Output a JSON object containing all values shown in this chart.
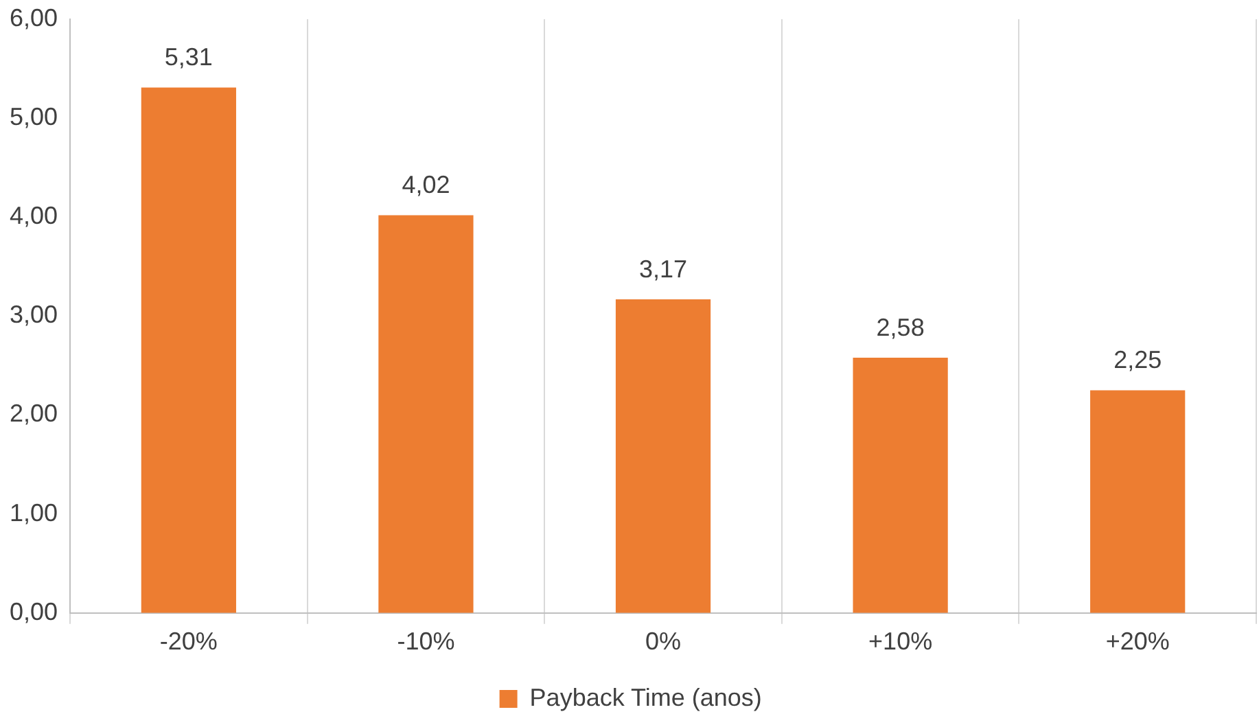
{
  "chart_data": {
    "type": "bar",
    "categories": [
      "-20%",
      "-10%",
      "0%",
      "+10%",
      "+20%"
    ],
    "series": [
      {
        "name": "Payback Time (anos)",
        "color": "#ed7d31",
        "values": [
          5.31,
          4.02,
          3.17,
          2.58,
          2.25
        ],
        "value_labels": [
          "5,31",
          "4,02",
          "3,17",
          "2,58",
          "2,25"
        ]
      }
    ],
    "ylim": [
      0,
      6
    ],
    "yticks": [
      {
        "value": 0,
        "label": "0,00"
      },
      {
        "value": 1,
        "label": "1,00"
      },
      {
        "value": 2,
        "label": "2,00"
      },
      {
        "value": 3,
        "label": "3,00"
      },
      {
        "value": 4,
        "label": "4,00"
      },
      {
        "value": 5,
        "label": "5,00"
      },
      {
        "value": 6,
        "label": "6,00"
      }
    ],
    "grid": "x",
    "legend": "bottom"
  }
}
